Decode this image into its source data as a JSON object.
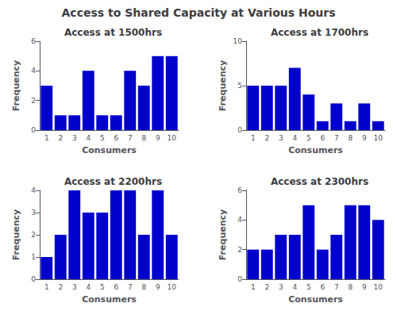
{
  "title": "Access to Shared Capacity at Various Hours",
  "chart_data": [
    {
      "type": "bar",
      "title": "Access at 1500hrs",
      "xlabel": "Consumers",
      "ylabel": "Frequency",
      "categories": [
        "1",
        "2",
        "3",
        "4",
        "5",
        "6",
        "7",
        "8",
        "9",
        "10"
      ],
      "values": [
        3,
        1,
        1,
        4,
        1,
        1,
        4,
        3,
        5,
        5
      ],
      "color": "#0000CC",
      "ylim": [
        0,
        6
      ],
      "yticks": [
        0,
        2,
        4,
        6
      ],
      "grid": false
    },
    {
      "type": "bar",
      "title": "Access at 1700hrs",
      "xlabel": "Consumers",
      "ylabel": "Frequency",
      "categories": [
        "1",
        "2",
        "3",
        "4",
        "5",
        "6",
        "7",
        "8",
        "9",
        "10"
      ],
      "values": [
        5,
        5,
        5,
        7,
        4,
        1,
        3,
        1,
        3,
        1
      ],
      "color": "#0000CC",
      "ylim": [
        0,
        10
      ],
      "yticks": [
        0,
        5,
        10
      ],
      "grid": false
    },
    {
      "type": "bar",
      "title": "Access at 2200hrs",
      "xlabel": "Consumers",
      "ylabel": "Frequency",
      "categories": [
        "1",
        "2",
        "3",
        "4",
        "5",
        "6",
        "7",
        "8",
        "9",
        "10"
      ],
      "values": [
        1,
        2,
        4,
        3,
        3,
        4,
        4,
        2,
        4,
        2
      ],
      "color": "#0000CC",
      "ylim": [
        0,
        4
      ],
      "yticks": [
        0,
        1,
        2,
        3,
        4
      ],
      "grid": false
    },
    {
      "type": "bar",
      "title": "Access at 2300hrs",
      "xlabel": "Consumers",
      "ylabel": "Frequency",
      "categories": [
        "1",
        "2",
        "3",
        "4",
        "5",
        "6",
        "7",
        "8",
        "9",
        "10"
      ],
      "values": [
        2,
        2,
        3,
        3,
        5,
        2,
        3,
        5,
        5,
        4
      ],
      "color": "#0000CC",
      "ylim": [
        0,
        6
      ],
      "yticks": [
        0,
        2,
        4,
        6
      ],
      "grid": false
    }
  ]
}
